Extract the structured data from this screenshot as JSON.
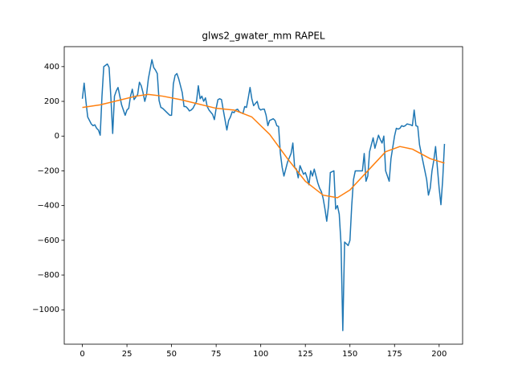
{
  "chart_data": {
    "type": "line",
    "title": "glws2_gwater_mm RAPEL",
    "xlim": [
      -10.15,
      213.15
    ],
    "ylim": [
      -1198,
      515
    ],
    "xticks": [
      0,
      25,
      50,
      75,
      100,
      125,
      150,
      175,
      200
    ],
    "yticks": [
      {
        "value": -1000,
        "label": "−1000"
      },
      {
        "value": -800,
        "label": "−800"
      },
      {
        "value": -600,
        "label": "−600"
      },
      {
        "value": -400,
        "label": "−400"
      },
      {
        "value": -200,
        "label": "−200"
      },
      0,
      200,
      400
    ],
    "series": [
      {
        "color": "#1f77b4",
        "x": [
          0,
          1,
          2,
          3,
          5,
          6,
          7,
          8,
          9,
          10,
          11,
          12,
          14,
          15,
          16,
          17,
          18,
          19,
          20,
          22,
          23,
          24,
          25,
          26,
          27,
          28,
          29,
          31,
          32,
          33,
          34,
          35,
          36,
          37,
          39,
          40,
          41,
          42,
          43,
          44,
          45,
          46,
          48,
          49,
          50,
          51,
          52,
          53,
          54,
          56,
          57,
          58,
          59,
          60,
          61,
          62,
          64,
          65,
          66,
          67,
          68,
          69,
          70,
          71,
          73,
          74,
          75,
          76,
          77,
          78,
          79,
          81,
          82,
          83,
          84,
          85,
          86,
          87,
          88,
          90,
          91,
          92,
          93,
          94,
          95,
          96,
          98,
          99,
          100,
          101,
          102,
          103,
          104,
          105,
          107,
          108,
          109,
          110,
          111,
          112,
          113,
          115,
          116,
          117,
          118,
          119,
          120,
          121,
          122,
          124,
          125,
          126,
          127,
          128,
          129,
          130,
          132,
          133,
          134,
          135,
          136,
          137,
          138,
          139,
          141,
          142,
          143,
          144,
          145,
          146,
          147,
          149,
          150,
          151,
          152,
          153,
          154,
          155,
          157,
          158,
          159,
          160,
          161,
          162,
          163,
          164,
          166,
          167,
          168,
          169,
          170,
          171,
          172,
          173,
          175,
          176,
          177,
          178,
          179,
          180,
          181,
          182,
          184,
          185,
          186,
          187,
          188,
          189,
          190,
          192,
          193,
          194,
          195,
          196,
          197,
          198,
          200,
          201,
          202,
          203
        ],
        "values": [
          215,
          305,
          200,
          110,
          70,
          60,
          65,
          45,
          35,
          5,
          230,
          400,
          415,
          395,
          220,
          15,
          230,
          260,
          280,
          180,
          150,
          120,
          150,
          160,
          230,
          270,
          210,
          240,
          310,
          290,
          250,
          200,
          240,
          330,
          440,
          395,
          380,
          360,
          205,
          165,
          160,
          150,
          130,
          120,
          120,
          300,
          350,
          360,
          330,
          250,
          170,
          170,
          160,
          145,
          150,
          160,
          200,
          290,
          215,
          230,
          200,
          220,
          170,
          150,
          125,
          95,
          160,
          210,
          215,
          210,
          150,
          35,
          90,
          110,
          140,
          135,
          150,
          155,
          140,
          130,
          170,
          165,
          220,
          280,
          215,
          175,
          200,
          160,
          150,
          155,
          155,
          120,
          60,
          90,
          100,
          90,
          60,
          55,
          -100,
          -180,
          -230,
          -150,
          -125,
          -100,
          -40,
          -180,
          -190,
          -240,
          -170,
          -220,
          -210,
          -240,
          -280,
          -200,
          -230,
          -190,
          -270,
          -300,
          -320,
          -360,
          -420,
          -490,
          -400,
          -210,
          -200,
          -420,
          -400,
          -450,
          -620,
          -1120,
          -610,
          -630,
          -600,
          -400,
          -250,
          -200,
          -200,
          -200,
          -200,
          -100,
          -260,
          -230,
          -90,
          -50,
          -10,
          -70,
          5,
          -20,
          -40,
          0,
          -200,
          -230,
          -260,
          -130,
          0,
          45,
          40,
          45,
          60,
          55,
          60,
          70,
          65,
          60,
          150,
          60,
          55,
          -50,
          -100,
          -200,
          -250,
          -340,
          -300,
          -200,
          -140,
          -60,
          -300,
          -395,
          -250,
          -45
        ]
      },
      {
        "color": "#ff7f0e",
        "x": [
          0,
          10,
          20,
          30,
          37,
          45,
          55,
          65,
          75,
          85,
          95,
          105,
          115,
          125,
          135,
          143,
          150,
          160,
          170,
          178,
          185,
          195,
          203
        ],
        "values": [
          165,
          180,
          205,
          230,
          240,
          230,
          210,
          185,
          160,
          150,
          110,
          10,
          -130,
          -260,
          -340,
          -355,
          -310,
          -200,
          -90,
          -60,
          -75,
          -130,
          -155
        ]
      }
    ]
  }
}
